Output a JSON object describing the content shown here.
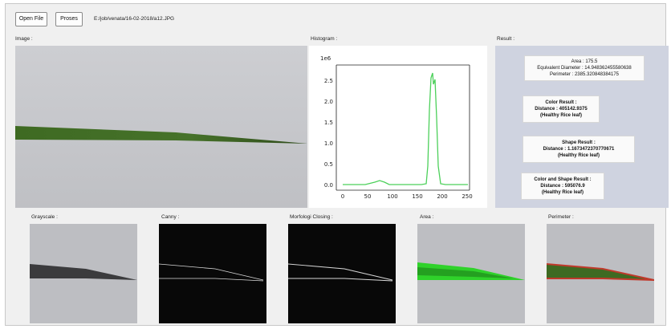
{
  "toolbar": {
    "open_file_label": "Open File",
    "proses_label": "Proses",
    "file_path": "E:/job/venata/16-02-2018/a12.JPG"
  },
  "sections": {
    "image_label": "Image :",
    "histogram_label": "Histogram :",
    "result_label": "Result :"
  },
  "histogram": {
    "scale_label": "1e6",
    "y_ticks": [
      "2.5",
      "2.0",
      "1.5",
      "1.0",
      "0.5",
      "0.0"
    ],
    "x_ticks": [
      "0",
      "50",
      "100",
      "150",
      "200",
      "250"
    ],
    "line_color": "#4cd05a"
  },
  "result": {
    "area": "Area : 175.5",
    "equivalent_diameter": "Equivalent Diameter : 14.948362455580638",
    "perimeter": "Perimeter : 2385.320848384175",
    "color_title": "Color Result :",
    "color_distance": "Distance : 405142.9375",
    "color_class": "(Healthy Rice leaf)",
    "shape_title": "Shape Result :",
    "shape_distance": "Distance : 1.1673472370770671",
    "shape_class": "(Healthy Rice leaf)",
    "combined_title": "Color and Shape Result :",
    "combined_distance": "Distance : 595076.9",
    "combined_class": "(Healthy Rice leaf)"
  },
  "thumbnails": {
    "grayscale": "Grayscale :",
    "canny": "Canny :",
    "morph_closing": "Morfologi Closing :",
    "area": "Area :",
    "perimeter": "Perimeter :"
  },
  "colors": {
    "leaf_green": "#3e6a22",
    "mask_green": "#2fd22a",
    "perimeter_red": "#c0392b"
  }
}
